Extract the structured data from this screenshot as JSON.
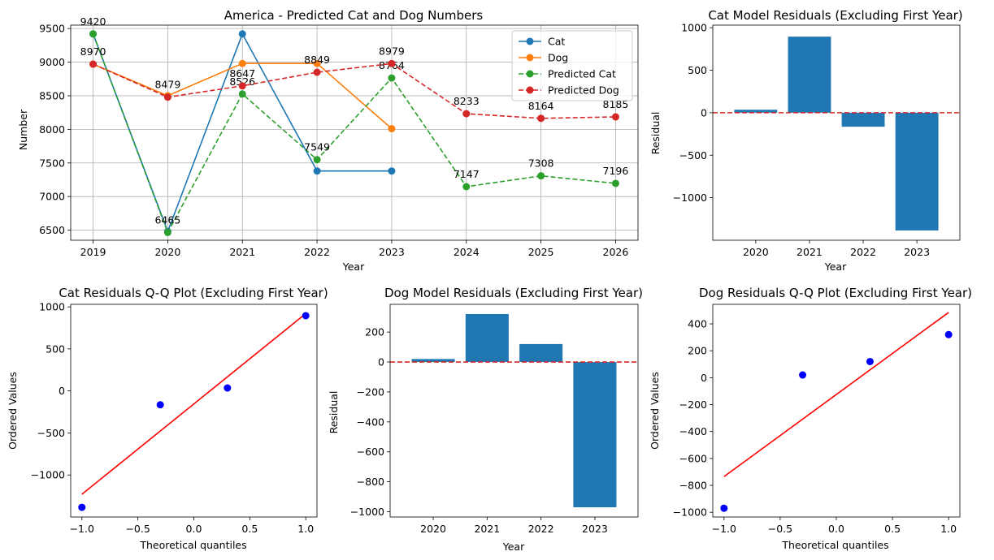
{
  "chart_data": [
    {
      "id": "main",
      "type": "line",
      "title": "America - Predicted Cat and Dog Numbers",
      "xlabel": "Year",
      "ylabel": "Number",
      "xlim": [
        2018.7,
        2026.3
      ],
      "ylim": [
        6350,
        9550
      ],
      "xticks": [
        2019,
        2020,
        2021,
        2022,
        2023,
        2024,
        2025,
        2026
      ],
      "yticks": [
        6500,
        7000,
        7500,
        8000,
        8500,
        9000,
        9500
      ],
      "grid": true,
      "legend": "top-right",
      "series": [
        {
          "name": "Cat",
          "color": "#1f77b4",
          "style": "solid",
          "x": [
            2019,
            2020,
            2021,
            2022,
            2023
          ],
          "y": [
            9420,
            6480,
            9420,
            7380,
            7380
          ],
          "labels": []
        },
        {
          "name": "Dog",
          "color": "#ff7f0e",
          "style": "solid",
          "x": [
            2019,
            2020,
            2021,
            2022,
            2023
          ],
          "y": [
            8970,
            8500,
            8980,
            8980,
            8010
          ],
          "labels": []
        },
        {
          "name": "Predicted Cat",
          "color": "#2ca02c",
          "style": "dashed",
          "x": [
            2019,
            2020,
            2021,
            2022,
            2023,
            2024,
            2025,
            2026
          ],
          "y": [
            9420,
            6465,
            8526,
            7549,
            8764,
            7147,
            7308,
            7196
          ],
          "labels": [
            "9420",
            "6465",
            "8526",
            "7549",
            "8764",
            "7147",
            "7308",
            "7196"
          ]
        },
        {
          "name": "Predicted Dog",
          "color": "#d62728",
          "style": "dashed",
          "x": [
            2019,
            2020,
            2021,
            2022,
            2023,
            2024,
            2025,
            2026
          ],
          "y": [
            8970,
            8479,
            8647,
            8849,
            8979,
            8233,
            8164,
            8185
          ],
          "labels": [
            "8970",
            "8479",
            "8647",
            "8849",
            "8979",
            "8233",
            "8164",
            "8185"
          ]
        }
      ]
    },
    {
      "id": "cat_resid",
      "type": "bar",
      "title": "Cat Model Residuals (Excluding First Year)",
      "xlabel": "Year",
      "ylabel": "Residual",
      "categories": [
        "2020",
        "2021",
        "2022",
        "2023"
      ],
      "values": [
        35,
        895,
        -165,
        -1385
      ],
      "ylim": [
        -1500,
        1030
      ],
      "yticks": [
        -1000,
        -500,
        0,
        500,
        1000
      ],
      "color": "#1f77b4",
      "zero_line_color": "#d62728"
    },
    {
      "id": "cat_qq",
      "type": "scatter",
      "title": "Cat Residuals Q-Q Plot (Excluding First Year)",
      "xlabel": "Theoretical quantiles",
      "ylabel": "Ordered Values",
      "xlim": [
        -1.1,
        1.1
      ],
      "ylim": [
        -1500,
        1030
      ],
      "xticks": [
        -1.0,
        -0.5,
        0.0,
        0.5,
        1.0
      ],
      "yticks": [
        -1000,
        -500,
        0,
        500,
        1000
      ],
      "points": {
        "x": [
          -1.0,
          -0.3,
          0.3,
          1.0
        ],
        "y": [
          -1385,
          -165,
          35,
          895
        ],
        "color": "#0000ff"
      },
      "fit_line": {
        "x": [
          -1.0,
          1.0
        ],
        "y": [
          -1230,
          920
        ],
        "color": "#ff0000"
      }
    },
    {
      "id": "dog_resid",
      "type": "bar",
      "title": "Dog Model Residuals (Excluding First Year)",
      "xlabel": "Year",
      "ylabel": "Residual",
      "categories": [
        "2020",
        "2021",
        "2022",
        "2023"
      ],
      "values": [
        20,
        320,
        120,
        -970
      ],
      "ylim": [
        -1035,
        385
      ],
      "yticks": [
        -1000,
        -800,
        -600,
        -400,
        -200,
        0,
        200
      ],
      "color": "#1f77b4",
      "zero_line_color": "#d62728"
    },
    {
      "id": "dog_qq",
      "type": "scatter",
      "title": "Dog Residuals Q-Q Plot (Excluding First Year)",
      "xlabel": "Theoretical quantiles",
      "ylabel": "Ordered Values",
      "xlim": [
        -1.1,
        1.1
      ],
      "ylim": [
        -1035,
        545
      ],
      "xticks": [
        -1.0,
        -0.5,
        0.0,
        0.5,
        1.0
      ],
      "yticks": [
        -1000,
        -800,
        -600,
        -400,
        -200,
        0,
        200,
        400
      ],
      "points": {
        "x": [
          -1.0,
          -0.3,
          0.3,
          1.0
        ],
        "y": [
          -970,
          20,
          120,
          320
        ],
        "color": "#0000ff"
      },
      "fit_line": {
        "x": [
          -1.0,
          1.0
        ],
        "y": [
          -735,
          485
        ],
        "color": "#ff0000"
      }
    }
  ]
}
